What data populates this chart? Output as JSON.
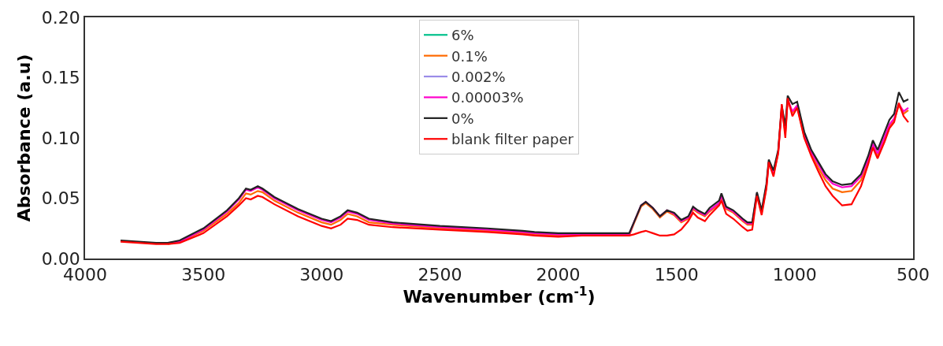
{
  "chart_data": {
    "type": "line",
    "xlabel": "Wavenumber (cm$^{-1}$)",
    "ylabel": "Absorbance (a.u)",
    "x": [
      3850,
      3700,
      3650,
      3600,
      3500,
      3400,
      3350,
      3320,
      3300,
      3270,
      3250,
      3200,
      3100,
      3000,
      2960,
      2920,
      2890,
      2850,
      2800,
      2700,
      2500,
      2300,
      2150,
      2100,
      2000,
      1900,
      1750,
      1700,
      1680,
      1650,
      1630,
      1600,
      1570,
      1540,
      1510,
      1480,
      1450,
      1430,
      1410,
      1380,
      1360,
      1340,
      1320,
      1310,
      1290,
      1260,
      1220,
      1200,
      1180,
      1160,
      1140,
      1120,
      1110,
      1090,
      1070,
      1055,
      1040,
      1030,
      1010,
      990,
      960,
      930,
      900,
      870,
      840,
      800,
      760,
      720,
      690,
      670,
      650,
      620,
      600,
      580,
      560,
      540,
      520
    ],
    "series": [
      {
        "name": "6%",
        "color": "#00c08b",
        "values": [
          null,
          null,
          null,
          null,
          null,
          null,
          null,
          null,
          null,
          null,
          null,
          null,
          null,
          null,
          null,
          null,
          null,
          null,
          null,
          null,
          null,
          null,
          null,
          null,
          null,
          null,
          null,
          null,
          null,
          null,
          null,
          null,
          null,
          null,
          null,
          null,
          null,
          null,
          null,
          null,
          null,
          null,
          null,
          null,
          null,
          null,
          null,
          null,
          null,
          null,
          null,
          null,
          null,
          null,
          null,
          null,
          null,
          null,
          null,
          null,
          null,
          null,
          null,
          null,
          null,
          null,
          null,
          null,
          null,
          null,
          null,
          null,
          null,
          null,
          null,
          null,
          null
        ]
      },
      {
        "name": "0.1%",
        "color": "#ff6a00",
        "values": [
          null,
          null,
          0.012,
          0.014,
          0.023,
          0.037,
          0.046,
          0.054,
          0.053,
          0.056,
          0.055,
          0.048,
          0.038,
          0.03,
          0.028,
          0.032,
          0.037,
          0.035,
          0.03,
          0.028,
          0.025,
          0.023,
          0.021,
          0.02,
          0.019,
          0.019,
          0.019,
          0.019,
          0.029,
          0.043,
          0.046,
          0.041,
          0.034,
          0.039,
          0.036,
          0.03,
          0.033,
          0.041,
          0.038,
          0.035,
          0.039,
          0.042,
          0.045,
          0.051,
          0.041,
          0.038,
          0.031,
          0.028,
          0.028,
          0.053,
          0.038,
          0.059,
          0.079,
          0.07,
          0.087,
          0.124,
          0.104,
          0.131,
          0.121,
          0.126,
          0.101,
          0.086,
          0.075,
          0.065,
          0.058,
          0.055,
          0.056,
          0.065,
          0.08,
          0.093,
          0.085,
          0.099,
          0.109,
          0.115,
          0.127,
          0.12,
          0.123
        ]
      },
      {
        "name": "0.002%",
        "color": "#9b8ce8",
        "values": [
          null,
          null,
          null,
          null,
          null,
          null,
          null,
          null,
          null,
          null,
          null,
          null,
          null,
          null,
          null,
          null,
          null,
          null,
          null,
          null,
          null,
          null,
          null,
          null,
          null,
          null,
          null,
          null,
          null,
          null,
          null,
          null,
          null,
          null,
          null,
          null,
          null,
          null,
          null,
          null,
          null,
          null,
          null,
          null,
          null,
          null,
          null,
          null,
          null,
          null,
          null,
          null,
          null,
          null,
          null,
          null,
          null,
          null,
          null,
          null,
          null,
          null,
          null,
          null,
          null,
          null,
          null,
          null,
          null,
          null,
          null,
          null,
          null,
          null,
          null,
          null,
          null
        ]
      },
      {
        "name": "0.00003%",
        "color": "#ff00cc",
        "values": [
          null,
          null,
          0.013,
          0.014,
          0.024,
          0.039,
          0.049,
          0.057,
          0.056,
          0.059,
          0.057,
          0.05,
          0.04,
          0.032,
          0.03,
          0.034,
          0.039,
          0.037,
          0.032,
          0.029,
          0.026,
          0.024,
          0.022,
          0.021,
          0.02,
          0.02,
          0.02,
          0.02,
          0.03,
          0.044,
          0.047,
          0.042,
          0.035,
          0.04,
          0.037,
          0.031,
          0.034,
          0.042,
          0.039,
          0.036,
          0.04,
          0.043,
          0.046,
          0.052,
          0.042,
          0.039,
          0.032,
          0.029,
          0.029,
          0.054,
          0.039,
          0.06,
          0.08,
          0.071,
          0.088,
          0.125,
          0.105,
          0.132,
          0.122,
          0.127,
          0.103,
          0.088,
          0.078,
          0.068,
          0.062,
          0.059,
          0.06,
          0.068,
          0.082,
          0.095,
          0.087,
          0.101,
          0.111,
          0.116,
          0.128,
          0.122,
          0.125
        ]
      },
      {
        "name": "0%",
        "color": "#222222",
        "values": [
          0.015,
          0.013,
          0.013,
          0.015,
          0.025,
          0.04,
          0.05,
          0.058,
          0.057,
          0.06,
          0.058,
          0.051,
          0.041,
          0.033,
          0.031,
          0.035,
          0.04,
          0.038,
          0.033,
          0.03,
          0.027,
          0.025,
          0.023,
          0.022,
          0.021,
          0.021,
          0.021,
          0.021,
          0.03,
          0.044,
          0.047,
          0.042,
          0.035,
          0.04,
          0.038,
          0.032,
          0.035,
          0.043,
          0.04,
          0.037,
          0.042,
          0.045,
          0.048,
          0.054,
          0.043,
          0.04,
          0.033,
          0.03,
          0.03,
          0.055,
          0.04,
          0.062,
          0.082,
          0.073,
          0.09,
          0.127,
          0.11,
          0.135,
          0.128,
          0.13,
          0.105,
          0.09,
          0.08,
          0.07,
          0.064,
          0.061,
          0.062,
          0.07,
          0.085,
          0.098,
          0.09,
          0.105,
          0.115,
          0.12,
          0.138,
          0.13,
          0.132
        ]
      },
      {
        "name": "blank filter paper",
        "color": "#ff0000",
        "values": [
          0.014,
          0.012,
          0.012,
          0.013,
          0.021,
          0.035,
          0.044,
          0.05,
          0.049,
          0.052,
          0.051,
          0.045,
          0.035,
          0.027,
          0.025,
          0.028,
          0.033,
          0.032,
          0.028,
          0.026,
          0.024,
          0.022,
          0.02,
          0.019,
          0.018,
          0.019,
          0.019,
          0.019,
          0.02,
          0.022,
          0.023,
          0.021,
          0.019,
          0.019,
          0.02,
          0.024,
          0.031,
          0.038,
          0.034,
          0.031,
          0.036,
          0.04,
          0.044,
          0.048,
          0.037,
          0.033,
          0.026,
          0.023,
          0.024,
          0.052,
          0.036,
          0.058,
          0.08,
          0.068,
          0.088,
          0.128,
          0.1,
          0.133,
          0.118,
          0.125,
          0.1,
          0.085,
          0.072,
          0.06,
          0.052,
          0.044,
          0.045,
          0.06,
          0.078,
          0.092,
          0.083,
          0.097,
          0.108,
          0.113,
          0.129,
          0.118,
          0.113
        ]
      }
    ],
    "xlim": [
      4000,
      500
    ],
    "xticks": [
      4000,
      3500,
      3000,
      2500,
      2000,
      1500,
      1000,
      500
    ],
    "ylim": [
      0,
      0.2
    ],
    "yticks": [
      {
        "value": 0,
        "label": "0.00"
      },
      {
        "value": 0.05,
        "label": "0.05"
      },
      {
        "value": 0.1,
        "label": "0.10"
      },
      {
        "value": 0.15,
        "label": "0.15"
      },
      {
        "value": 0.2,
        "label": "0.20"
      }
    ],
    "grid": false,
    "legend": "top",
    "marker": "none",
    "line_style": "solid"
  }
}
